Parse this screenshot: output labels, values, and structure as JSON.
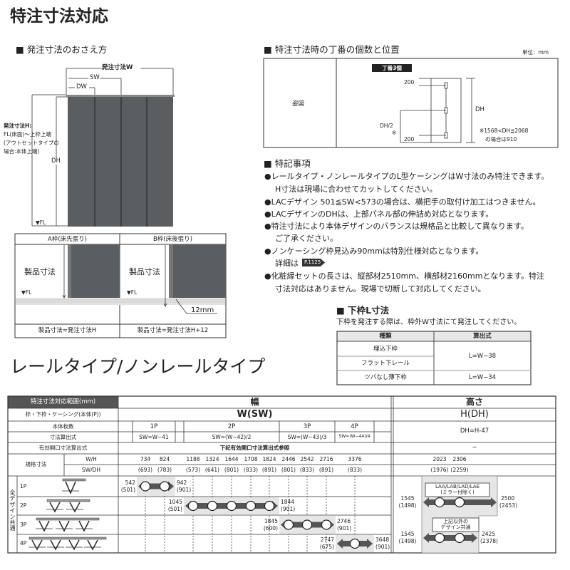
{
  "title": "特注寸法対応",
  "order_section": {
    "heading": "■ 発注寸法のおさえ方",
    "w_label": "発注寸法W",
    "sw": "SW",
    "dw": "DW",
    "dh": "DH",
    "fl": "▼FL",
    "h_note": [
      "発注寸法H:",
      "FL(床面)～上枠上端",
      "(アウトセットタイプの",
      "場合:本体上端)"
    ],
    "a_frame": {
      "title": "A枠(床先張り)",
      "product": "製品寸法",
      "fl": "▼FL",
      "formula": "製品寸法=発注寸法H"
    },
    "b_frame": {
      "title": "B枠(床後張り)",
      "product": "製品寸法",
      "fl": "▼FL",
      "mm": "12mm",
      "formula": "製品寸法=発注寸法H+12"
    }
  },
  "hinge_section": {
    "heading": "■ 特注寸法時の丁番の個数と位置",
    "unit": "単位：mm",
    "row_label": "姿図",
    "badge": "丁番3個",
    "dim_top": "200",
    "dim_bottom": "200",
    "dh": "DH",
    "dh_half": "DH/2",
    "mark": "※",
    "note": [
      "※1568<DH≦2068",
      "の場合は910"
    ]
  },
  "notes": {
    "heading": "■ 特記事項",
    "lines": [
      "●レールタイプ・ノンレールタイプのL型ケーシングはW寸法のみ特注できます。",
      "H寸法は現場に合わせてカットしてください。",
      "●LACデザイン 501≦SW<573の場合は、横把手の取付け加工はつきません。",
      "●LACデザインのDHは、上部パネル部の伸詰め対応となります。",
      "●特注寸法により本体デザインのバランスは規格品と比較して異なります。",
      "ご了承ください。",
      "●ノンケーシング枠見込み90mmは特別仕様対応となります。",
      "詳細は",
      "●化粧縁セットの長さは、縦部材2510mm、横部材2160mmとなります。特注",
      "寸法対応はありません。現場で切断して対応してください。"
    ],
    "page_ref": "P.1125"
  },
  "lower_frame": {
    "heading": "■ 下枠L寸法",
    "desc": "下枠を発注する際は、枠外W寸法にて発注してください。",
    "headers": [
      "種類",
      "算出式"
    ],
    "rows": [
      "埋込下枠",
      "フラット下レール",
      "ツバなし薄下枠"
    ],
    "formulas": [
      "L=W−38",
      "L=W−34"
    ]
  },
  "subtitle": "レールタイプ/ノンレールタイプ",
  "range_table": {
    "header_left": "特注寸法対応範囲(mm)",
    "row_labels": [
      "枠・下枠・ケーシング(本体(P))",
      "本体枚数",
      "寸法算出式",
      "有効開口寸法算出式",
      "規格寸法"
    ],
    "std_sub": [
      "W/H",
      "SW/DH"
    ],
    "side_label": "全デザイン共通",
    "width": {
      "header": "幅",
      "symbol": "W(SW)",
      "panels": [
        "1P",
        "2P",
        "3P",
        "4P"
      ],
      "formulas": [
        "SW=W−41",
        "SW=(W−42)/2",
        "SW=(W−43)/3",
        "SW=(W−44)/4"
      ],
      "opening": "下記有効開口寸法算出式参照",
      "std_w": [
        "734",
        "824",
        "1188",
        "1324",
        "1644",
        "1708",
        "1824",
        "2446",
        "2542",
        "2716",
        "3376"
      ],
      "std_sw": [
        "(693)",
        "(783)",
        "(573)",
        "(641)",
        "(801)",
        "(833)",
        "(891)",
        "(801)",
        "(833)",
        "(891)",
        "(833)"
      ],
      "ranges": [
        {
          "panels": "1P",
          "min": "542",
          "min_sw": "(501)",
          "max": "942",
          "max_sw": "(901)"
        },
        {
          "panels": "2P",
          "min": "1045",
          "min_sw": "(501)",
          "max": "1844",
          "max_sw": "(901)"
        },
        {
          "panels": "3P",
          "min": "1845",
          "min_sw": "(600)",
          "max": "2746",
          "max_sw": "(901)"
        },
        {
          "panels": "4P",
          "min": "2747",
          "min_sw": "(675)",
          "max": "3648",
          "max_sw": "(901)"
        }
      ]
    },
    "height": {
      "header": "高さ",
      "symbol": "H(DH)",
      "formula": "DH=H-47",
      "opening": "−",
      "std_h": [
        "2023",
        "2306"
      ],
      "std_dh": [
        "(1976)",
        "(2259)"
      ],
      "groups": [
        {
          "label": [
            "LAA/LAB/LAD/LAE",
            "(ミラー付除く)"
          ],
          "min": "1545",
          "min_dh": "(1498)",
          "max": "2500",
          "max_dh": "(2453)"
        },
        {
          "label": [
            "上記以外の",
            "デザイン共通"
          ],
          "min": "1545",
          "min_dh": "(1498)",
          "max": "2425",
          "max_dh": "(2378)"
        }
      ]
    }
  },
  "colors": {
    "door": "#5b5e60",
    "dark_header": "#555555",
    "range_bg": "#e6e6e6",
    "arrow": "#555555"
  }
}
